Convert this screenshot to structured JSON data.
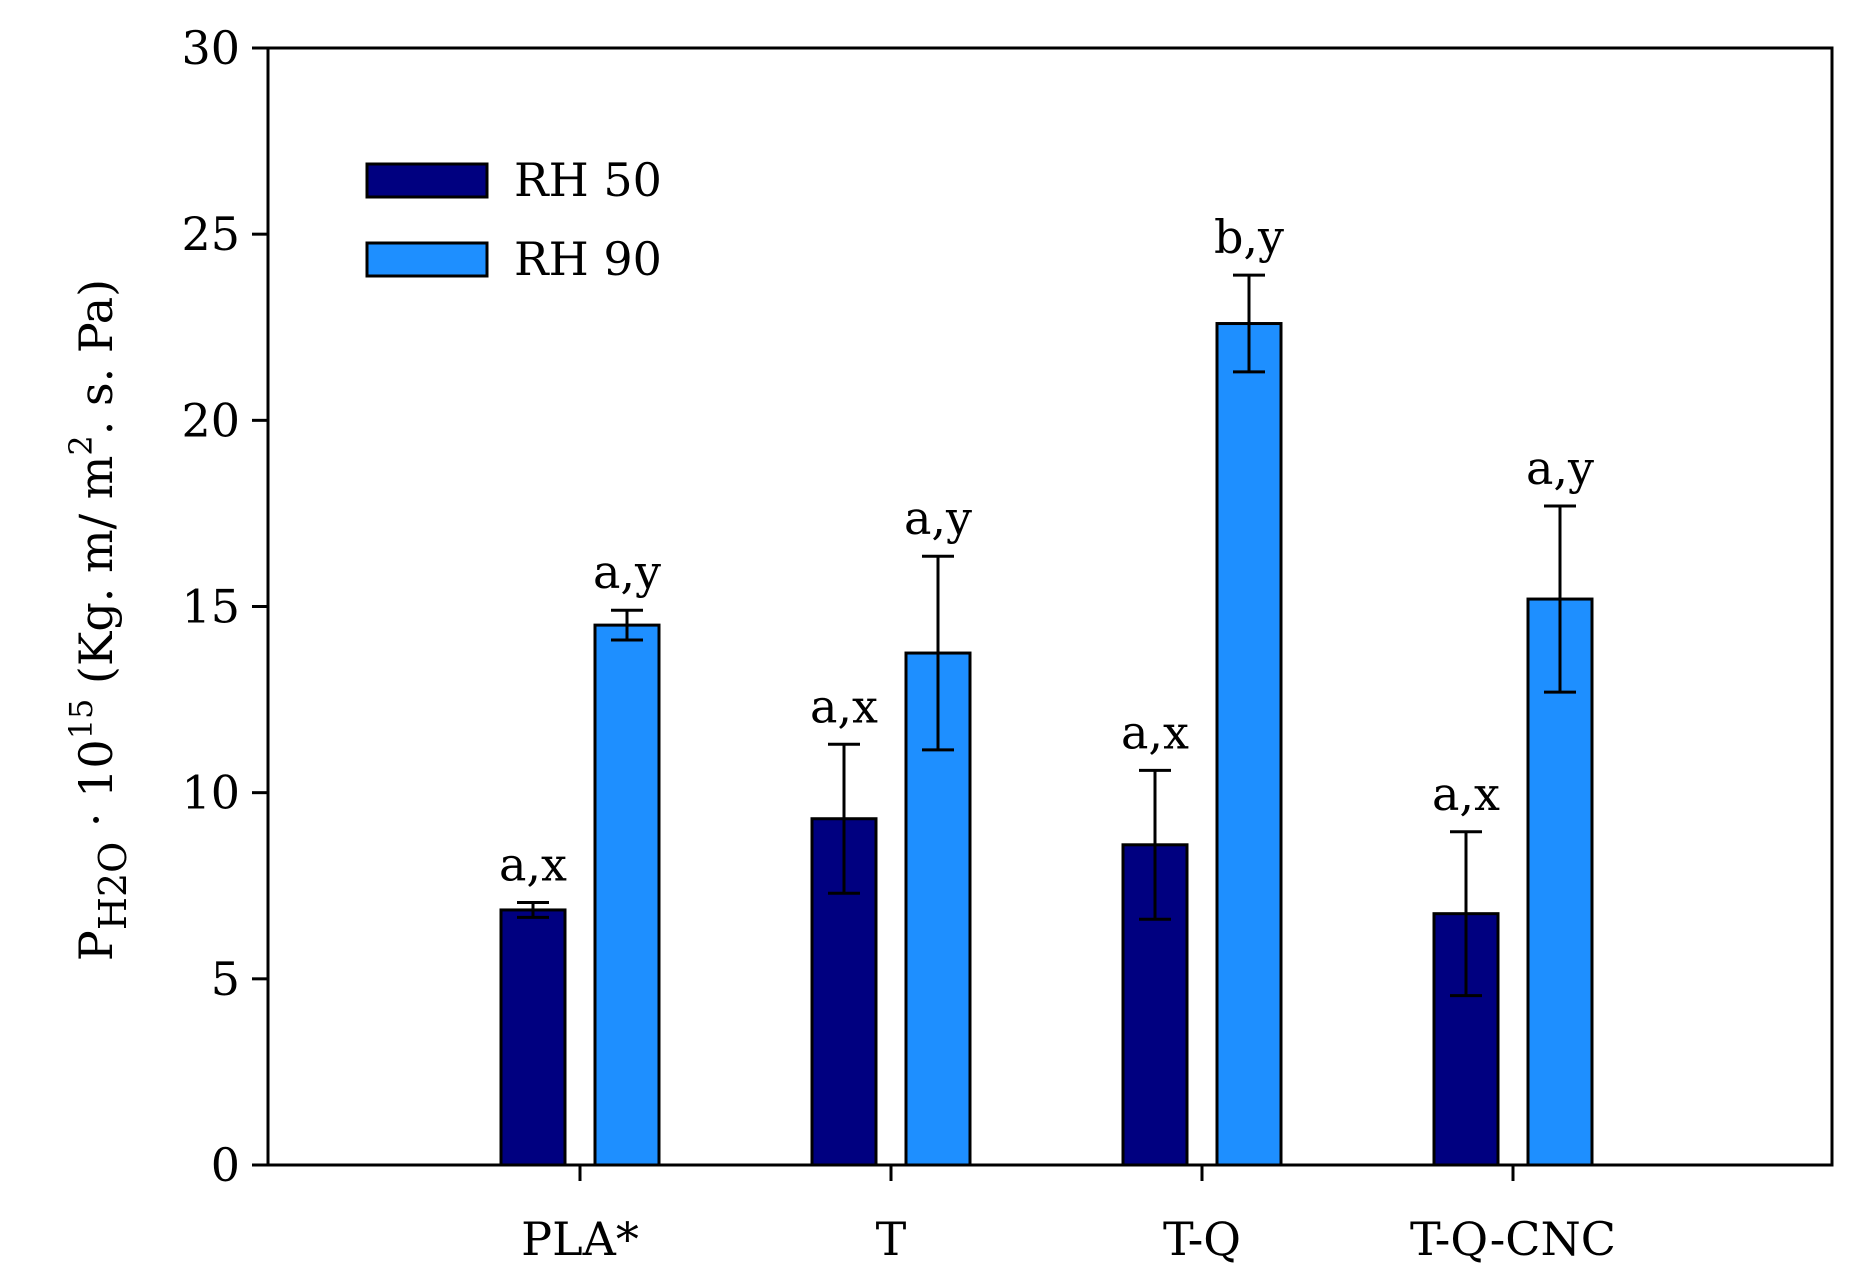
{
  "chart_data": {
    "type": "bar",
    "categories": [
      "PLA*",
      "T",
      "T-Q",
      "T-Q-CNC"
    ],
    "series": [
      {
        "name": "RH 50",
        "color": "#000080",
        "values": [
          6.85,
          9.3,
          8.6,
          6.75
        ],
        "errors": [
          0.2,
          2.0,
          2.0,
          2.2
        ],
        "labels": [
          "a,x",
          "a,x",
          "a,x",
          "a,x"
        ]
      },
      {
        "name": "RH 90",
        "color": "#1E8FFF",
        "values": [
          14.5,
          13.75,
          22.6,
          15.2
        ],
        "errors": [
          0.4,
          2.6,
          1.3,
          2.5
        ],
        "labels": [
          "a,y",
          "a,y",
          "b,y",
          "a,y"
        ]
      }
    ],
    "ylim": [
      0,
      30
    ],
    "yticks": [
      0,
      5,
      10,
      15,
      20,
      25,
      30
    ],
    "ylabel": {
      "base": "P",
      "subscript": "H2O",
      "factor": " · 10",
      "factor_exp": "15",
      "units": " (Kg. m/ m",
      "units_exp": "2",
      "units_end": ". s. Pa)"
    },
    "xlabel": "",
    "title": "",
    "legend_position": "top-left",
    "grid": false
  }
}
